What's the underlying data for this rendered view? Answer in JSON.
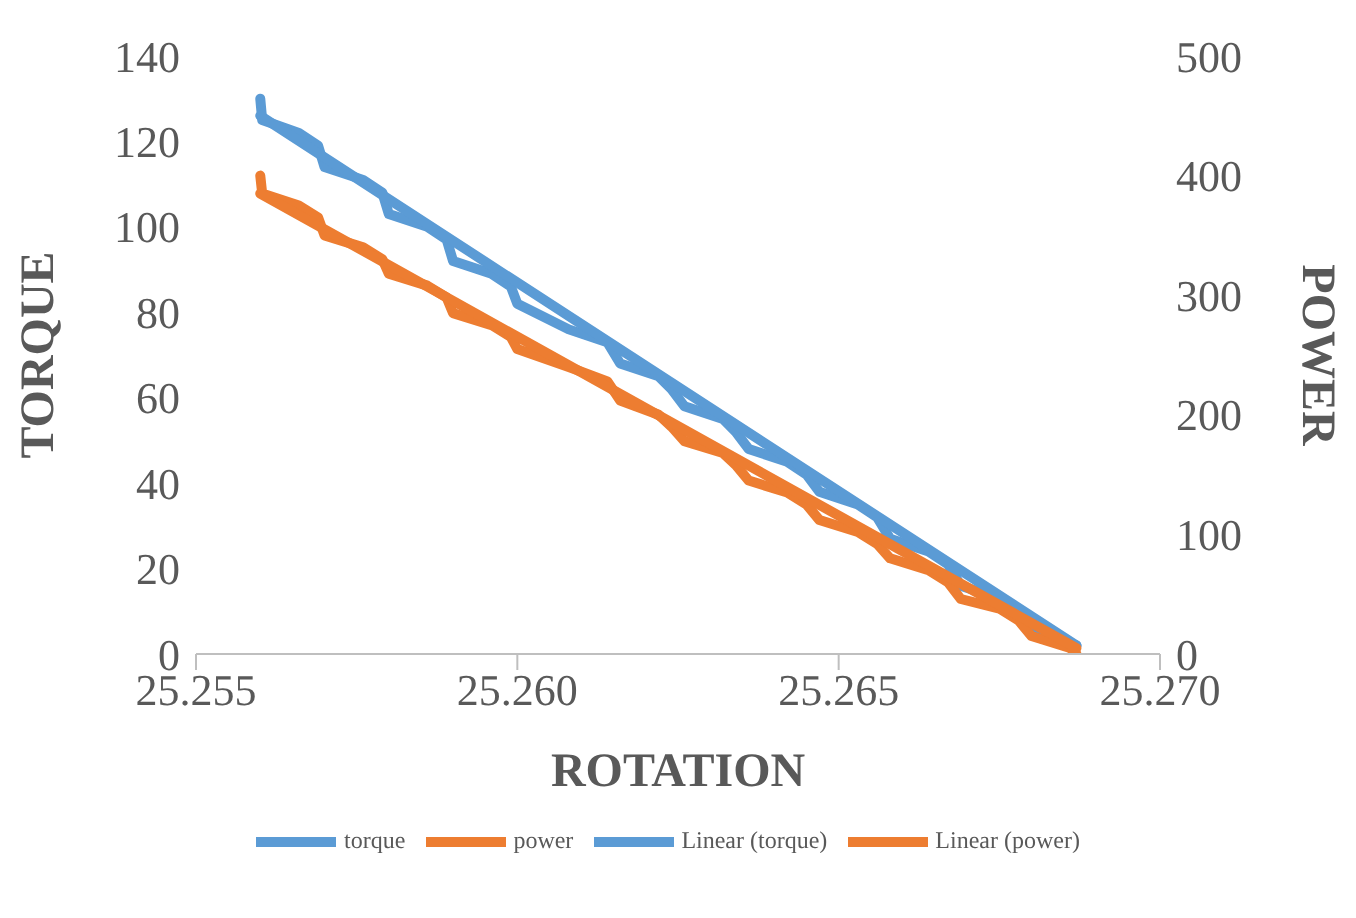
{
  "chart_data": {
    "type": "line",
    "xlabel": "ROTATION",
    "ylabel": "TORQUE",
    "y2label": "POWER",
    "xlim": [
      25.255,
      25.27
    ],
    "xticks": [
      {
        "value": 25.255,
        "label": "25.255"
      },
      {
        "value": 25.26,
        "label": "25.260"
      },
      {
        "value": 25.265,
        "label": "25.265"
      },
      {
        "value": 25.27,
        "label": "25.270"
      }
    ],
    "ylim": [
      0,
      140
    ],
    "yticks": [
      0,
      20,
      40,
      60,
      80,
      100,
      120,
      140
    ],
    "y2lim": [
      0,
      500
    ],
    "y2ticks": [
      0,
      100,
      200,
      300,
      400,
      500
    ],
    "grid": false,
    "legend": "bottom",
    "marker": "none",
    "line_style": "solid",
    "series": [
      {
        "name": "torque",
        "color": "#5b9bd5",
        "x": [
          25.256,
          25.25603,
          25.2566,
          25.2569,
          25.257,
          25.2576,
          25.2579,
          25.258,
          25.2586,
          25.2589,
          25.259,
          25.2596,
          25.2599,
          25.26,
          25.2608,
          25.2614,
          25.2616,
          25.2622,
          25.2624,
          25.2626,
          25.2632,
          25.2634,
          25.2636,
          25.2642,
          25.2645,
          25.2647,
          25.2653,
          25.2656,
          25.2658,
          25.2664,
          25.2667,
          25.2669,
          25.2675,
          25.2678,
          25.268,
          25.2687
        ],
        "values": [
          130,
          125,
          122,
          119,
          114,
          111,
          108,
          103,
          100,
          97,
          92,
          89,
          86,
          82,
          76,
          73,
          68,
          65,
          62,
          58,
          55,
          52,
          48,
          45,
          42,
          38,
          35,
          32,
          27,
          24,
          21,
          16,
          13,
          10,
          6,
          2
        ]
      },
      {
        "name": "power",
        "color": "#ed7d31",
        "axis": "y2",
        "x": [
          25.256,
          25.25603,
          25.2566,
          25.2569,
          25.257,
          25.2576,
          25.2579,
          25.258,
          25.2586,
          25.2589,
          25.259,
          25.2596,
          25.2599,
          25.26,
          25.2608,
          25.2614,
          25.2616,
          25.2622,
          25.2624,
          25.2626,
          25.2632,
          25.2634,
          25.2636,
          25.2642,
          25.2645,
          25.2647,
          25.2653,
          25.2656,
          25.2658,
          25.2664,
          25.2667,
          25.2669,
          25.2675,
          25.2678,
          25.268,
          25.2686,
          25.2687
        ],
        "values": [
          400,
          385,
          375,
          365,
          350,
          340,
          330,
          318,
          308,
          298,
          285,
          275,
          265,
          255,
          240,
          228,
          212,
          200,
          190,
          178,
          168,
          158,
          145,
          135,
          125,
          112,
          102,
          92,
          80,
          70,
          60,
          46,
          38,
          28,
          15,
          5,
          0
        ]
      },
      {
        "name": "Linear (torque)",
        "color": "#5b9bd5",
        "x": [
          25.256,
          25.2687
        ],
        "values": [
          126,
          2
        ]
      },
      {
        "name": "Linear (power)",
        "color": "#ed7d31",
        "axis": "y2",
        "x": [
          25.256,
          25.2687
        ],
        "values": [
          385,
          5
        ]
      }
    ]
  }
}
